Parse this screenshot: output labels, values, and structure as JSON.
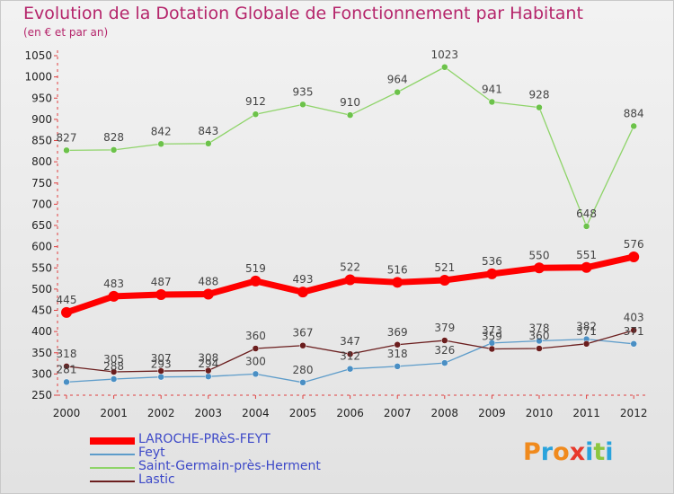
{
  "header": {
    "title": "Evolution de la Dotation Globale de Fonctionnement par Habitant",
    "subtitle": "(en € et par an)"
  },
  "logo": {
    "text": "Proxiti",
    "colors": [
      "#f08a1d",
      "#2aa3dc",
      "#f08a1d",
      "#e8392c",
      "#2aa3dc",
      "#8cc63f",
      "#2aa3dc"
    ]
  },
  "chart_data": {
    "type": "line",
    "title": "Evolution de la Dotation Globale de Fonctionnement par Habitant",
    "subtitle": "(en € et par an)",
    "x": [
      "2000",
      "2001",
      "2002",
      "2003",
      "2004",
      "2005",
      "2006",
      "2007",
      "2008",
      "2009",
      "2010",
      "2011",
      "2012"
    ],
    "yticks": [
      "250",
      "300",
      "350",
      "400",
      "450",
      "500",
      "550",
      "600",
      "650",
      "700",
      "750",
      "800",
      "850",
      "900",
      "950",
      "1000",
      "1050"
    ],
    "ylim": [
      250,
      1050
    ],
    "grid": false,
    "legend_position": "bottom-left",
    "series": [
      {
        "name": "LAROCHE-PRèS-FEYT",
        "color": "#ff0000",
        "values": [
          445,
          483,
          487,
          488,
          519,
          493,
          522,
          516,
          521,
          536,
          550,
          551,
          576
        ],
        "labels": [
          "445",
          "483",
          "487",
          "488",
          "519",
          "493",
          "522",
          "516",
          "521",
          "536",
          "550",
          "551",
          "576"
        ]
      },
      {
        "name": "Feyt",
        "color": "#5d9cca",
        "values": [
          281,
          288,
          293,
          294,
          300,
          280,
          312,
          318,
          326,
          373,
          378,
          382,
          371
        ],
        "labels": [
          "281",
          "288",
          "293",
          "294",
          "300",
          "280",
          "312",
          "318",
          "326",
          "373",
          "378",
          "382",
          "371"
        ]
      },
      {
        "name": "Saint-Germain-près-Herment",
        "color": "#8fd46a",
        "values": [
          827,
          828,
          842,
          843,
          912,
          935,
          910,
          964,
          1023,
          941,
          928,
          648,
          884
        ],
        "labels": [
          "827",
          "828",
          "842",
          "843",
          "912",
          "935",
          "910",
          "964",
          "1023",
          "941",
          "928",
          "648",
          "884"
        ]
      },
      {
        "name": "Lastic",
        "color": "#6b1e1e",
        "values": [
          318,
          305,
          307,
          308,
          360,
          367,
          347,
          369,
          379,
          359,
          360,
          371,
          403
        ],
        "labels": [
          "318",
          "305",
          "307",
          "308",
          "360",
          "367",
          "347",
          "369",
          "379",
          "359",
          "360",
          "371",
          "403"
        ]
      }
    ]
  }
}
